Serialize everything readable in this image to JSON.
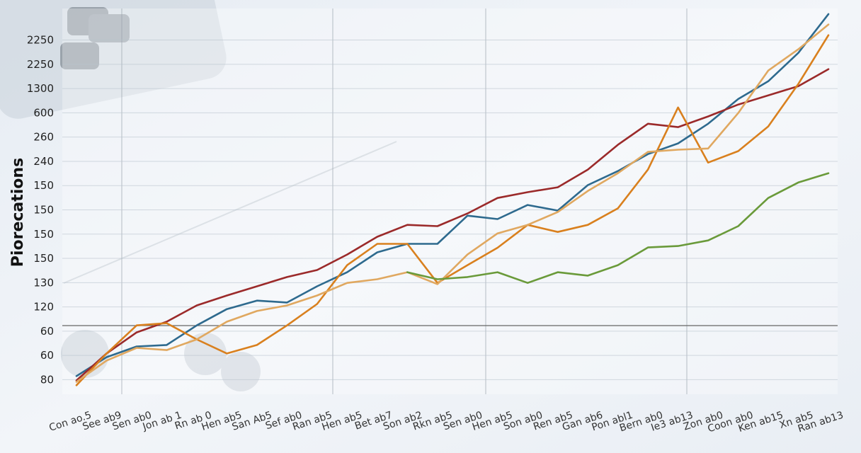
{
  "chart_data": {
    "type": "line",
    "ylabel": "Piorecations",
    "categories": [
      "Con ao.5",
      "See ab9",
      "Sen ab0",
      "Jon ab 1",
      "Rn ab 0",
      "Hen ab5",
      "San Ab5",
      "Sef ab0",
      "Ran ab5",
      "Hen ab5",
      "Bet ab7",
      "Son ab2",
      "Rkn ab5",
      "Sen ab0",
      "Hen ab5",
      "Son ab0",
      "Ren ab5",
      "Gan ab6",
      "Pon abl1",
      "Bern ab0",
      "Ie3 ab13",
      "Zon ab0",
      "Coon ab0",
      "Ken ab15",
      "Xn ab5",
      "Ran ab13"
    ],
    "ylim": [
      -0.6,
      15.3
    ],
    "yticks": [
      {
        "value": 0,
        "label": "80"
      },
      {
        "value": 1,
        "label": "60"
      },
      {
        "value": 2,
        "label": "60"
      },
      {
        "value": 3,
        "label": "120"
      },
      {
        "value": 4,
        "label": "130"
      },
      {
        "value": 5,
        "label": "150"
      },
      {
        "value": 6,
        "label": "150"
      },
      {
        "value": 7,
        "label": "150"
      },
      {
        "value": 8,
        "label": "150"
      },
      {
        "value": 9,
        "label": "240"
      },
      {
        "value": 10,
        "label": "260"
      },
      {
        "value": 11,
        "label": "600"
      },
      {
        "value": 12,
        "label": "1300"
      },
      {
        "value": 13,
        "label": "2250"
      },
      {
        "value": 14,
        "label": "2250"
      }
    ],
    "grid": true,
    "series": [
      {
        "color": "#2e6a8e",
        "values": [
          0.15,
          0.93,
          1.37,
          1.43,
          2.24,
          2.91,
          3.26,
          3.18,
          3.85,
          4.43,
          5.25,
          5.6,
          5.6,
          6.76,
          6.62,
          7.2,
          6.97,
          8.02,
          8.6,
          9.3,
          9.74,
          10.55,
          11.57,
          12.3,
          13.47,
          15.07
        ]
      },
      {
        "color": "#9b2a2a",
        "values": [
          -0.03,
          1.08,
          1.95,
          2.39,
          3.06,
          3.47,
          3.85,
          4.23,
          4.52,
          5.16,
          5.89,
          6.38,
          6.33,
          6.85,
          7.49,
          7.73,
          7.93,
          8.66,
          9.68,
          10.55,
          10.41,
          10.85,
          11.34,
          11.72,
          12.1,
          12.8
        ]
      },
      {
        "color": "#d9801e",
        "values": [
          -0.23,
          1.08,
          2.24,
          2.33,
          1.66,
          1.08,
          1.43,
          2.24,
          3.12,
          4.72,
          5.6,
          5.6,
          3.99,
          4.72,
          5.44,
          6.38,
          6.09,
          6.38,
          7.06,
          8.66,
          11.22,
          8.95,
          9.42,
          10.44,
          12.19,
          14.2
        ]
      },
      {
        "color": "#e0a860",
        "values": [
          -0.09,
          0.79,
          1.31,
          1.22,
          1.66,
          2.39,
          2.83,
          3.06,
          3.47,
          3.99,
          4.14,
          4.43,
          3.94,
          5.16,
          6.03,
          6.38,
          6.91,
          7.78,
          8.51,
          9.39,
          9.48,
          9.53,
          10.99,
          12.74,
          13.62,
          14.64
        ]
      },
      {
        "color": "#6a9a3a",
        "values": [
          null,
          null,
          null,
          null,
          null,
          null,
          null,
          null,
          null,
          null,
          null,
          4.43,
          4.14,
          4.23,
          4.43,
          3.99,
          4.43,
          4.29,
          4.72,
          5.45,
          5.51,
          5.74,
          6.33,
          7.49,
          8.13,
          8.51
        ]
      }
    ]
  }
}
